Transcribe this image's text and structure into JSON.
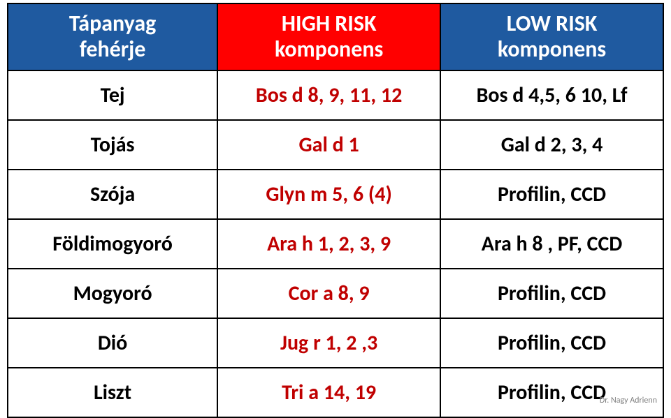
{
  "table": {
    "header_bg": [
      "#1f5aa0",
      "#ff0000",
      "#1f5aa0"
    ],
    "headers": [
      "Tápanyag\nfehérje",
      "HIGH RISK\nkomponens",
      "LOW RISK\nkomponens"
    ],
    "col_widths": [
      "32%",
      "34%",
      "34%"
    ],
    "rows": [
      {
        "c0": "Tej",
        "c1": "Bos d 8, 9, 11, 12",
        "c2": "Bos d 4,5, 6 10, Lf"
      },
      {
        "c0": "Tojás",
        "c1": "Gal d 1",
        "c2": "Gal d 2, 3, 4"
      },
      {
        "c0": "Szója",
        "c1": "Glyn m 5, 6 (4)",
        "c2": "Profilin, CCD"
      },
      {
        "c0": "Földimogyoró",
        "c1": "Ara h 1, 2, 3, 9",
        "c2": "Ara h 8 , PF, CCD"
      },
      {
        "c0": "Mogyoró",
        "c1": "Cor a 8, 9",
        "c2": "Profilin, CCD"
      },
      {
        "c0": "Dió",
        "c1": "Jug r 1, 2 ,3",
        "c2": "Profilin, CCD"
      },
      {
        "c0": "Liszt",
        "c1": "Tri a 14, 19",
        "c2": "Profilin, CCD"
      }
    ],
    "col_text_color": [
      "#000000",
      "#c00000",
      "#000000"
    ]
  },
  "footer": "Dr. Nagy Adrienn"
}
